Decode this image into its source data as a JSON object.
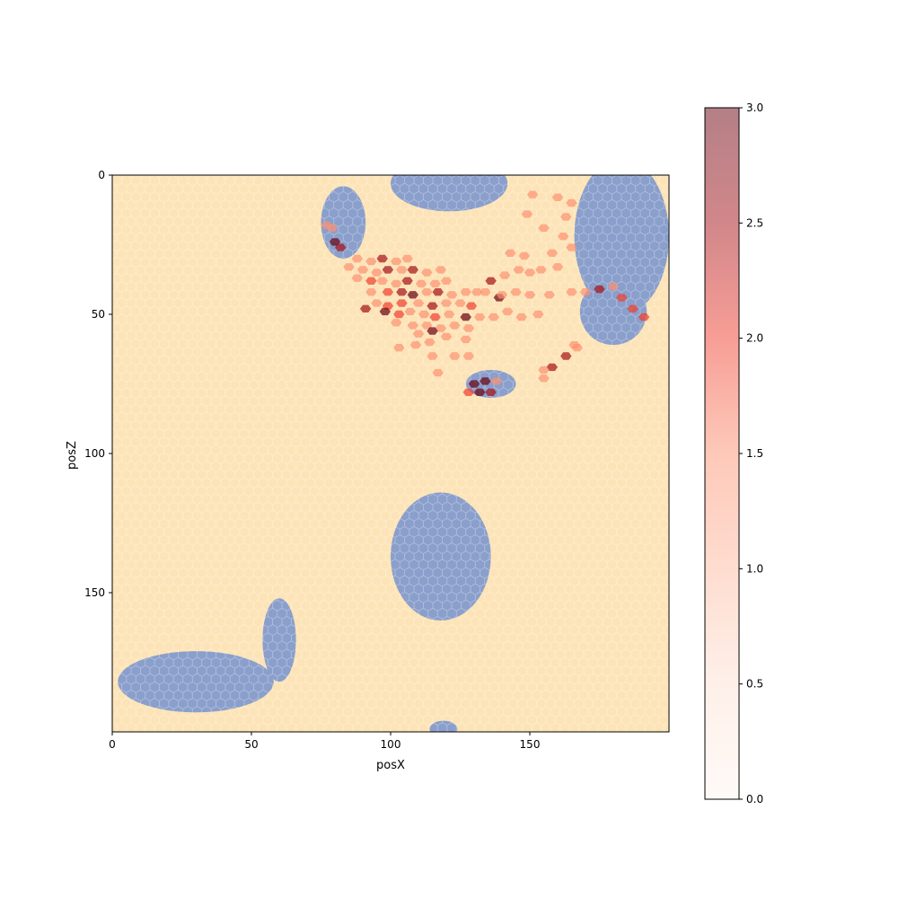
{
  "chart_data": {
    "type": "heatmap",
    "title": "",
    "xlabel": "posX",
    "ylabel": "posZ",
    "xlim": [
      0,
      200
    ],
    "ylim": [
      200,
      0
    ],
    "xticks": [
      0,
      50,
      100,
      150
    ],
    "yticks": [
      0,
      50,
      100,
      150
    ],
    "grid": false,
    "background_map": {
      "terrain_color": "#fde4b8",
      "water_color": "#8a9fcb",
      "vegetation_color": "#7fd49a",
      "water_regions": [
        {
          "name": "north-lake",
          "center": [
            121,
            3
          ],
          "radii": [
            21,
            10
          ]
        },
        {
          "name": "north-west-pond",
          "center": [
            83,
            17
          ],
          "radii": [
            8,
            13
          ]
        },
        {
          "name": "north-east-lake",
          "center": [
            183,
            22
          ],
          "radii": [
            17,
            28
          ]
        },
        {
          "name": "east-bay",
          "center": [
            180,
            49
          ],
          "radii": [
            12,
            12
          ]
        },
        {
          "name": "center-pond",
          "center": [
            136,
            75
          ],
          "radii": [
            9,
            5
          ]
        },
        {
          "name": "oval-lake",
          "center": [
            118,
            137
          ],
          "radii": [
            18,
            23
          ]
        },
        {
          "name": "south-west-lake",
          "center": [
            30,
            182
          ],
          "radii": [
            28,
            11
          ]
        },
        {
          "name": "south-west-lake-arm",
          "center": [
            60,
            167
          ],
          "radii": [
            6,
            15
          ]
        },
        {
          "name": "south-edge-pond",
          "center": [
            119,
            199
          ],
          "radii": [
            5,
            3
          ]
        }
      ]
    },
    "colorbar": {
      "min": 0,
      "max": 3,
      "ticks": [
        0.0,
        0.5,
        1.0,
        1.5,
        2.0,
        2.5,
        3.0
      ],
      "tick_labels": [
        "0.0",
        "0.5",
        "1.0",
        "1.5",
        "2.0",
        "2.5",
        "3.0"
      ],
      "colormap": "Reds",
      "alpha": 0.5
    },
    "hex_bins": [
      {
        "x": 88,
        "y": 30,
        "v": 1.5
      },
      {
        "x": 93,
        "y": 31,
        "v": 1.5
      },
      {
        "x": 97,
        "y": 30,
        "v": 2.5
      },
      {
        "x": 102,
        "y": 31,
        "v": 1.5
      },
      {
        "x": 106,
        "y": 30,
        "v": 1.5
      },
      {
        "x": 85,
        "y": 33,
        "v": 1.5
      },
      {
        "x": 90,
        "y": 34,
        "v": 1.5
      },
      {
        "x": 95,
        "y": 35,
        "v": 1.5
      },
      {
        "x": 99,
        "y": 34,
        "v": 2.5
      },
      {
        "x": 104,
        "y": 34,
        "v": 1.5
      },
      {
        "x": 108,
        "y": 34,
        "v": 2.5
      },
      {
        "x": 113,
        "y": 35,
        "v": 1.5
      },
      {
        "x": 118,
        "y": 34,
        "v": 1.5
      },
      {
        "x": 88,
        "y": 37,
        "v": 1.5
      },
      {
        "x": 93,
        "y": 38,
        "v": 2.0
      },
      {
        "x": 97,
        "y": 38,
        "v": 1.5
      },
      {
        "x": 102,
        "y": 39,
        "v": 1.5
      },
      {
        "x": 106,
        "y": 38,
        "v": 2.5
      },
      {
        "x": 111,
        "y": 39,
        "v": 1.5
      },
      {
        "x": 116,
        "y": 39,
        "v": 1.5
      },
      {
        "x": 120,
        "y": 38,
        "v": 1.5
      },
      {
        "x": 93,
        "y": 42,
        "v": 1.5
      },
      {
        "x": 99,
        "y": 42,
        "v": 2.0
      },
      {
        "x": 104,
        "y": 42,
        "v": 2.5
      },
      {
        "x": 108,
        "y": 43,
        "v": 3.0
      },
      {
        "x": 113,
        "y": 42,
        "v": 1.5
      },
      {
        "x": 117,
        "y": 42,
        "v": 2.5
      },
      {
        "x": 122,
        "y": 43,
        "v": 1.5
      },
      {
        "x": 127,
        "y": 42,
        "v": 1.5
      },
      {
        "x": 131,
        "y": 42,
        "v": 1.5
      },
      {
        "x": 95,
        "y": 46,
        "v": 1.5
      },
      {
        "x": 99,
        "y": 47,
        "v": 2.0
      },
      {
        "x": 104,
        "y": 46,
        "v": 2.0
      },
      {
        "x": 110,
        "y": 46,
        "v": 1.5
      },
      {
        "x": 115,
        "y": 47,
        "v": 2.5
      },
      {
        "x": 120,
        "y": 46,
        "v": 1.5
      },
      {
        "x": 125,
        "y": 46,
        "v": 1.5
      },
      {
        "x": 129,
        "y": 47,
        "v": 2.0
      },
      {
        "x": 91,
        "y": 48,
        "v": 2.5
      },
      {
        "x": 98,
        "y": 49,
        "v": 3.0
      },
      {
        "x": 103,
        "y": 50,
        "v": 2.0
      },
      {
        "x": 107,
        "y": 49,
        "v": 1.5
      },
      {
        "x": 112,
        "y": 50,
        "v": 1.5
      },
      {
        "x": 116,
        "y": 51,
        "v": 2.0
      },
      {
        "x": 121,
        "y": 50,
        "v": 1.5
      },
      {
        "x": 127,
        "y": 51,
        "v": 3.0
      },
      {
        "x": 132,
        "y": 51,
        "v": 1.5
      },
      {
        "x": 102,
        "y": 53,
        "v": 1.5
      },
      {
        "x": 108,
        "y": 54,
        "v": 1.5
      },
      {
        "x": 113,
        "y": 54,
        "v": 1.5
      },
      {
        "x": 118,
        "y": 55,
        "v": 1.5
      },
      {
        "x": 123,
        "y": 54,
        "v": 1.5
      },
      {
        "x": 128,
        "y": 55,
        "v": 1.5
      },
      {
        "x": 110,
        "y": 57,
        "v": 1.5
      },
      {
        "x": 115,
        "y": 56,
        "v": 3.0
      },
      {
        "x": 120,
        "y": 58,
        "v": 1.5
      },
      {
        "x": 109,
        "y": 61,
        "v": 1.5
      },
      {
        "x": 114,
        "y": 60,
        "v": 1.5
      },
      {
        "x": 127,
        "y": 59,
        "v": 1.5
      },
      {
        "x": 103,
        "y": 62,
        "v": 1.5
      },
      {
        "x": 115,
        "y": 65,
        "v": 1.5
      },
      {
        "x": 123,
        "y": 65,
        "v": 1.5
      },
      {
        "x": 128,
        "y": 65,
        "v": 1.5
      },
      {
        "x": 117,
        "y": 71,
        "v": 1.5
      },
      {
        "x": 134,
        "y": 42,
        "v": 1.5
      },
      {
        "x": 139,
        "y": 44,
        "v": 3.0
      },
      {
        "x": 136,
        "y": 38,
        "v": 2.5
      },
      {
        "x": 141,
        "y": 36,
        "v": 1.5
      },
      {
        "x": 146,
        "y": 34,
        "v": 1.5
      },
      {
        "x": 150,
        "y": 35,
        "v": 1.5
      },
      {
        "x": 154,
        "y": 34,
        "v": 1.5
      },
      {
        "x": 160,
        "y": 33,
        "v": 1.5
      },
      {
        "x": 143,
        "y": 28,
        "v": 1.5
      },
      {
        "x": 148,
        "y": 29,
        "v": 1.5
      },
      {
        "x": 140,
        "y": 43,
        "v": 1.5
      },
      {
        "x": 145,
        "y": 42,
        "v": 1.5
      },
      {
        "x": 150,
        "y": 43,
        "v": 1.5
      },
      {
        "x": 137,
        "y": 51,
        "v": 1.5
      },
      {
        "x": 142,
        "y": 49,
        "v": 1.5
      },
      {
        "x": 147,
        "y": 51,
        "v": 1.5
      },
      {
        "x": 153,
        "y": 50,
        "v": 1.5
      },
      {
        "x": 157,
        "y": 43,
        "v": 1.5
      },
      {
        "x": 165,
        "y": 42,
        "v": 1.5
      },
      {
        "x": 170,
        "y": 42,
        "v": 1.5
      },
      {
        "x": 151,
        "y": 7,
        "v": 1.5
      },
      {
        "x": 160,
        "y": 8,
        "v": 1.5
      },
      {
        "x": 165,
        "y": 10,
        "v": 1.5
      },
      {
        "x": 149,
        "y": 14,
        "v": 1.5
      },
      {
        "x": 163,
        "y": 15,
        "v": 1.5
      },
      {
        "x": 155,
        "y": 19,
        "v": 1.5
      },
      {
        "x": 162,
        "y": 22,
        "v": 1.5
      },
      {
        "x": 165,
        "y": 26,
        "v": 1.5
      },
      {
        "x": 158,
        "y": 28,
        "v": 1.5
      },
      {
        "x": 163,
        "y": 65,
        "v": 2.5
      },
      {
        "x": 158,
        "y": 69,
        "v": 2.5
      },
      {
        "x": 155,
        "y": 70,
        "v": 1.5
      },
      {
        "x": 167,
        "y": 62,
        "v": 1.5
      },
      {
        "x": 166,
        "y": 61,
        "v": 1.5
      },
      {
        "x": 155,
        "y": 73,
        "v": 1.5
      },
      {
        "x": 130,
        "y": 75,
        "v": 3.0
      },
      {
        "x": 134,
        "y": 74,
        "v": 3.0
      },
      {
        "x": 132,
        "y": 78,
        "v": 3.0
      },
      {
        "x": 136,
        "y": 78,
        "v": 2.5
      },
      {
        "x": 128,
        "y": 78,
        "v": 2.0
      },
      {
        "x": 138,
        "y": 74,
        "v": 1.5
      },
      {
        "x": 80,
        "y": 24,
        "v": 3.0
      },
      {
        "x": 82,
        "y": 26,
        "v": 2.5
      },
      {
        "x": 79,
        "y": 19,
        "v": 1.5
      },
      {
        "x": 77,
        "y": 18,
        "v": 1.5
      },
      {
        "x": 175,
        "y": 41,
        "v": 2.5
      },
      {
        "x": 183,
        "y": 44,
        "v": 2.0
      },
      {
        "x": 187,
        "y": 48,
        "v": 2.0
      },
      {
        "x": 191,
        "y": 51,
        "v": 2.0
      },
      {
        "x": 180,
        "y": 40,
        "v": 1.5
      }
    ]
  }
}
